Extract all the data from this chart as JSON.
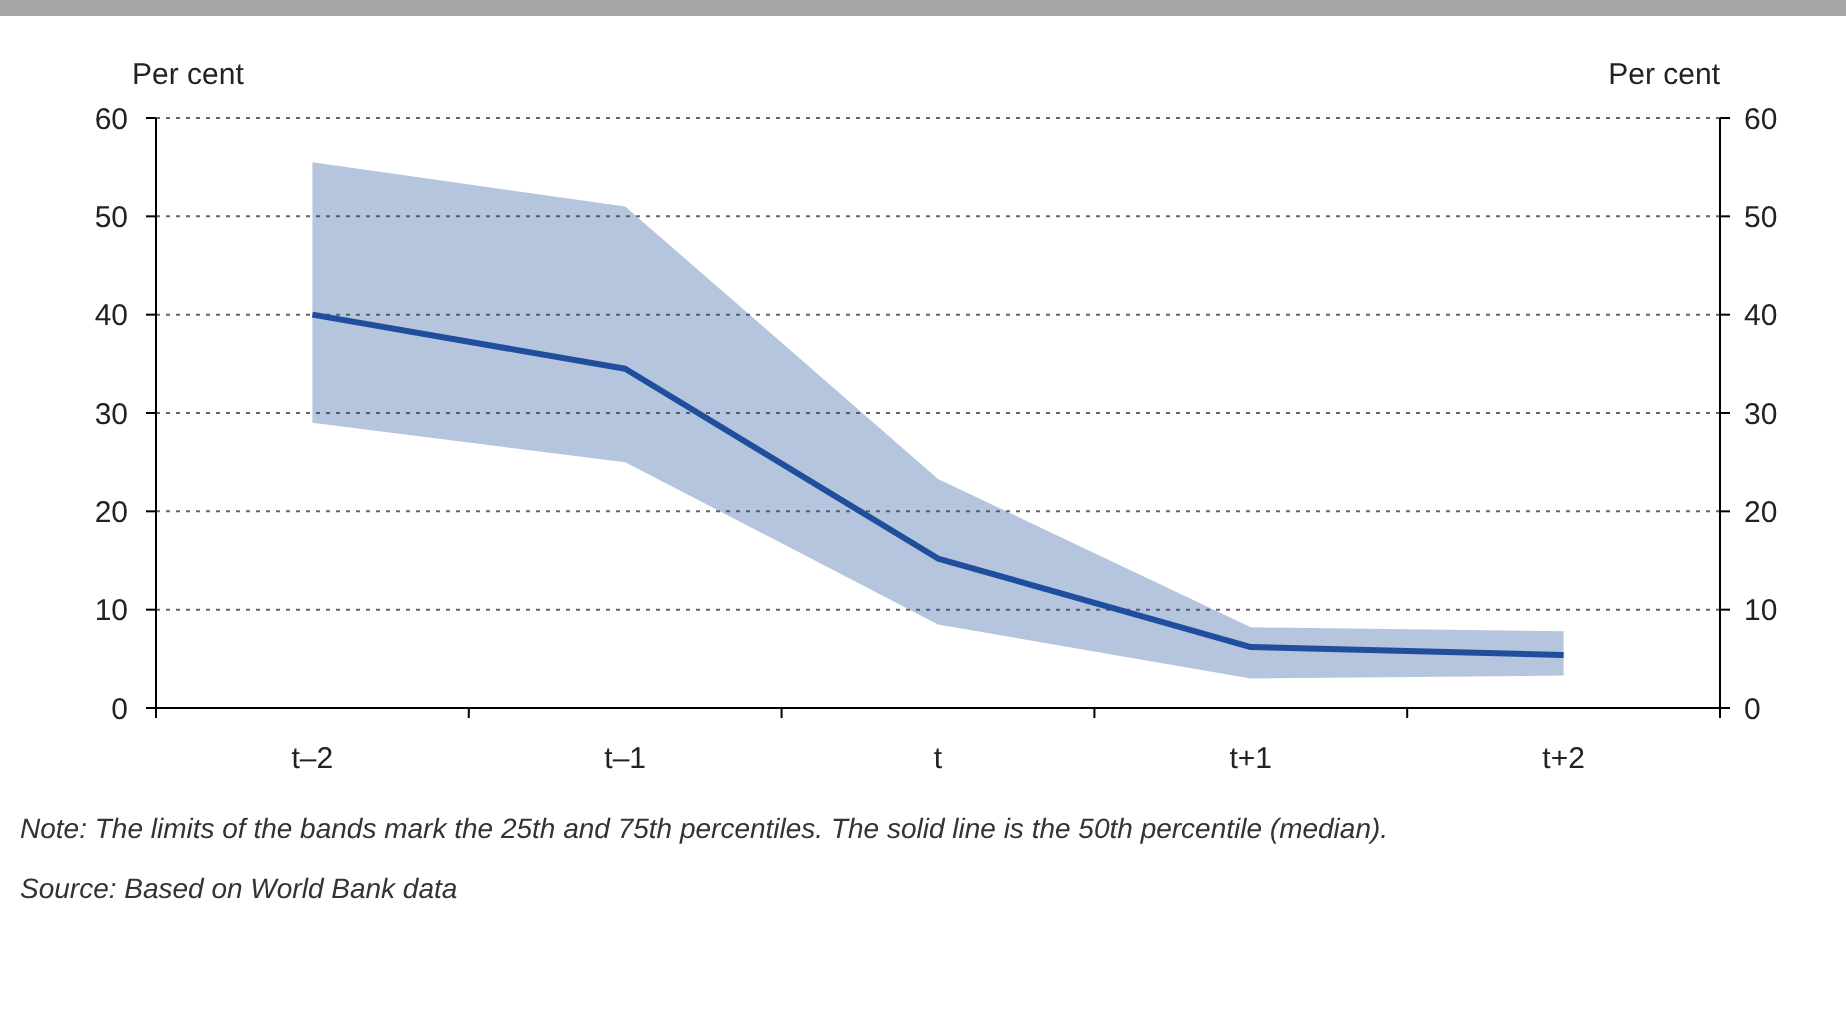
{
  "chart_data": {
    "type": "line",
    "ylabel": "Per cent",
    "y2label": "Per cent",
    "categories": [
      "t–2",
      "t–1",
      "t",
      "t+1",
      "t+2"
    ],
    "series": [
      {
        "color": "#1f4e9c",
        "values": [
          40,
          34.5,
          15.2,
          6.2,
          5.4
        ],
        "lower": [
          29,
          25,
          8.5,
          3,
          3.3
        ],
        "upper": [
          55.5,
          51,
          23.3,
          8.2,
          7.8
        ]
      }
    ],
    "ylim": [
      0,
      60
    ],
    "yticks": [
      0,
      10,
      20,
      30,
      40,
      50,
      60
    ],
    "y2lim": [
      0,
      60
    ],
    "y2ticks": [
      0,
      10,
      20,
      30,
      40,
      50,
      60
    ],
    "grid": "y",
    "marker": "none",
    "line_style": "solid",
    "annotations": [
      "Note: The limits of the bands mark the 25th and 75th percentiles. The solid line is the 50th percentile (median).",
      "Source: Based on World Bank data"
    ]
  }
}
